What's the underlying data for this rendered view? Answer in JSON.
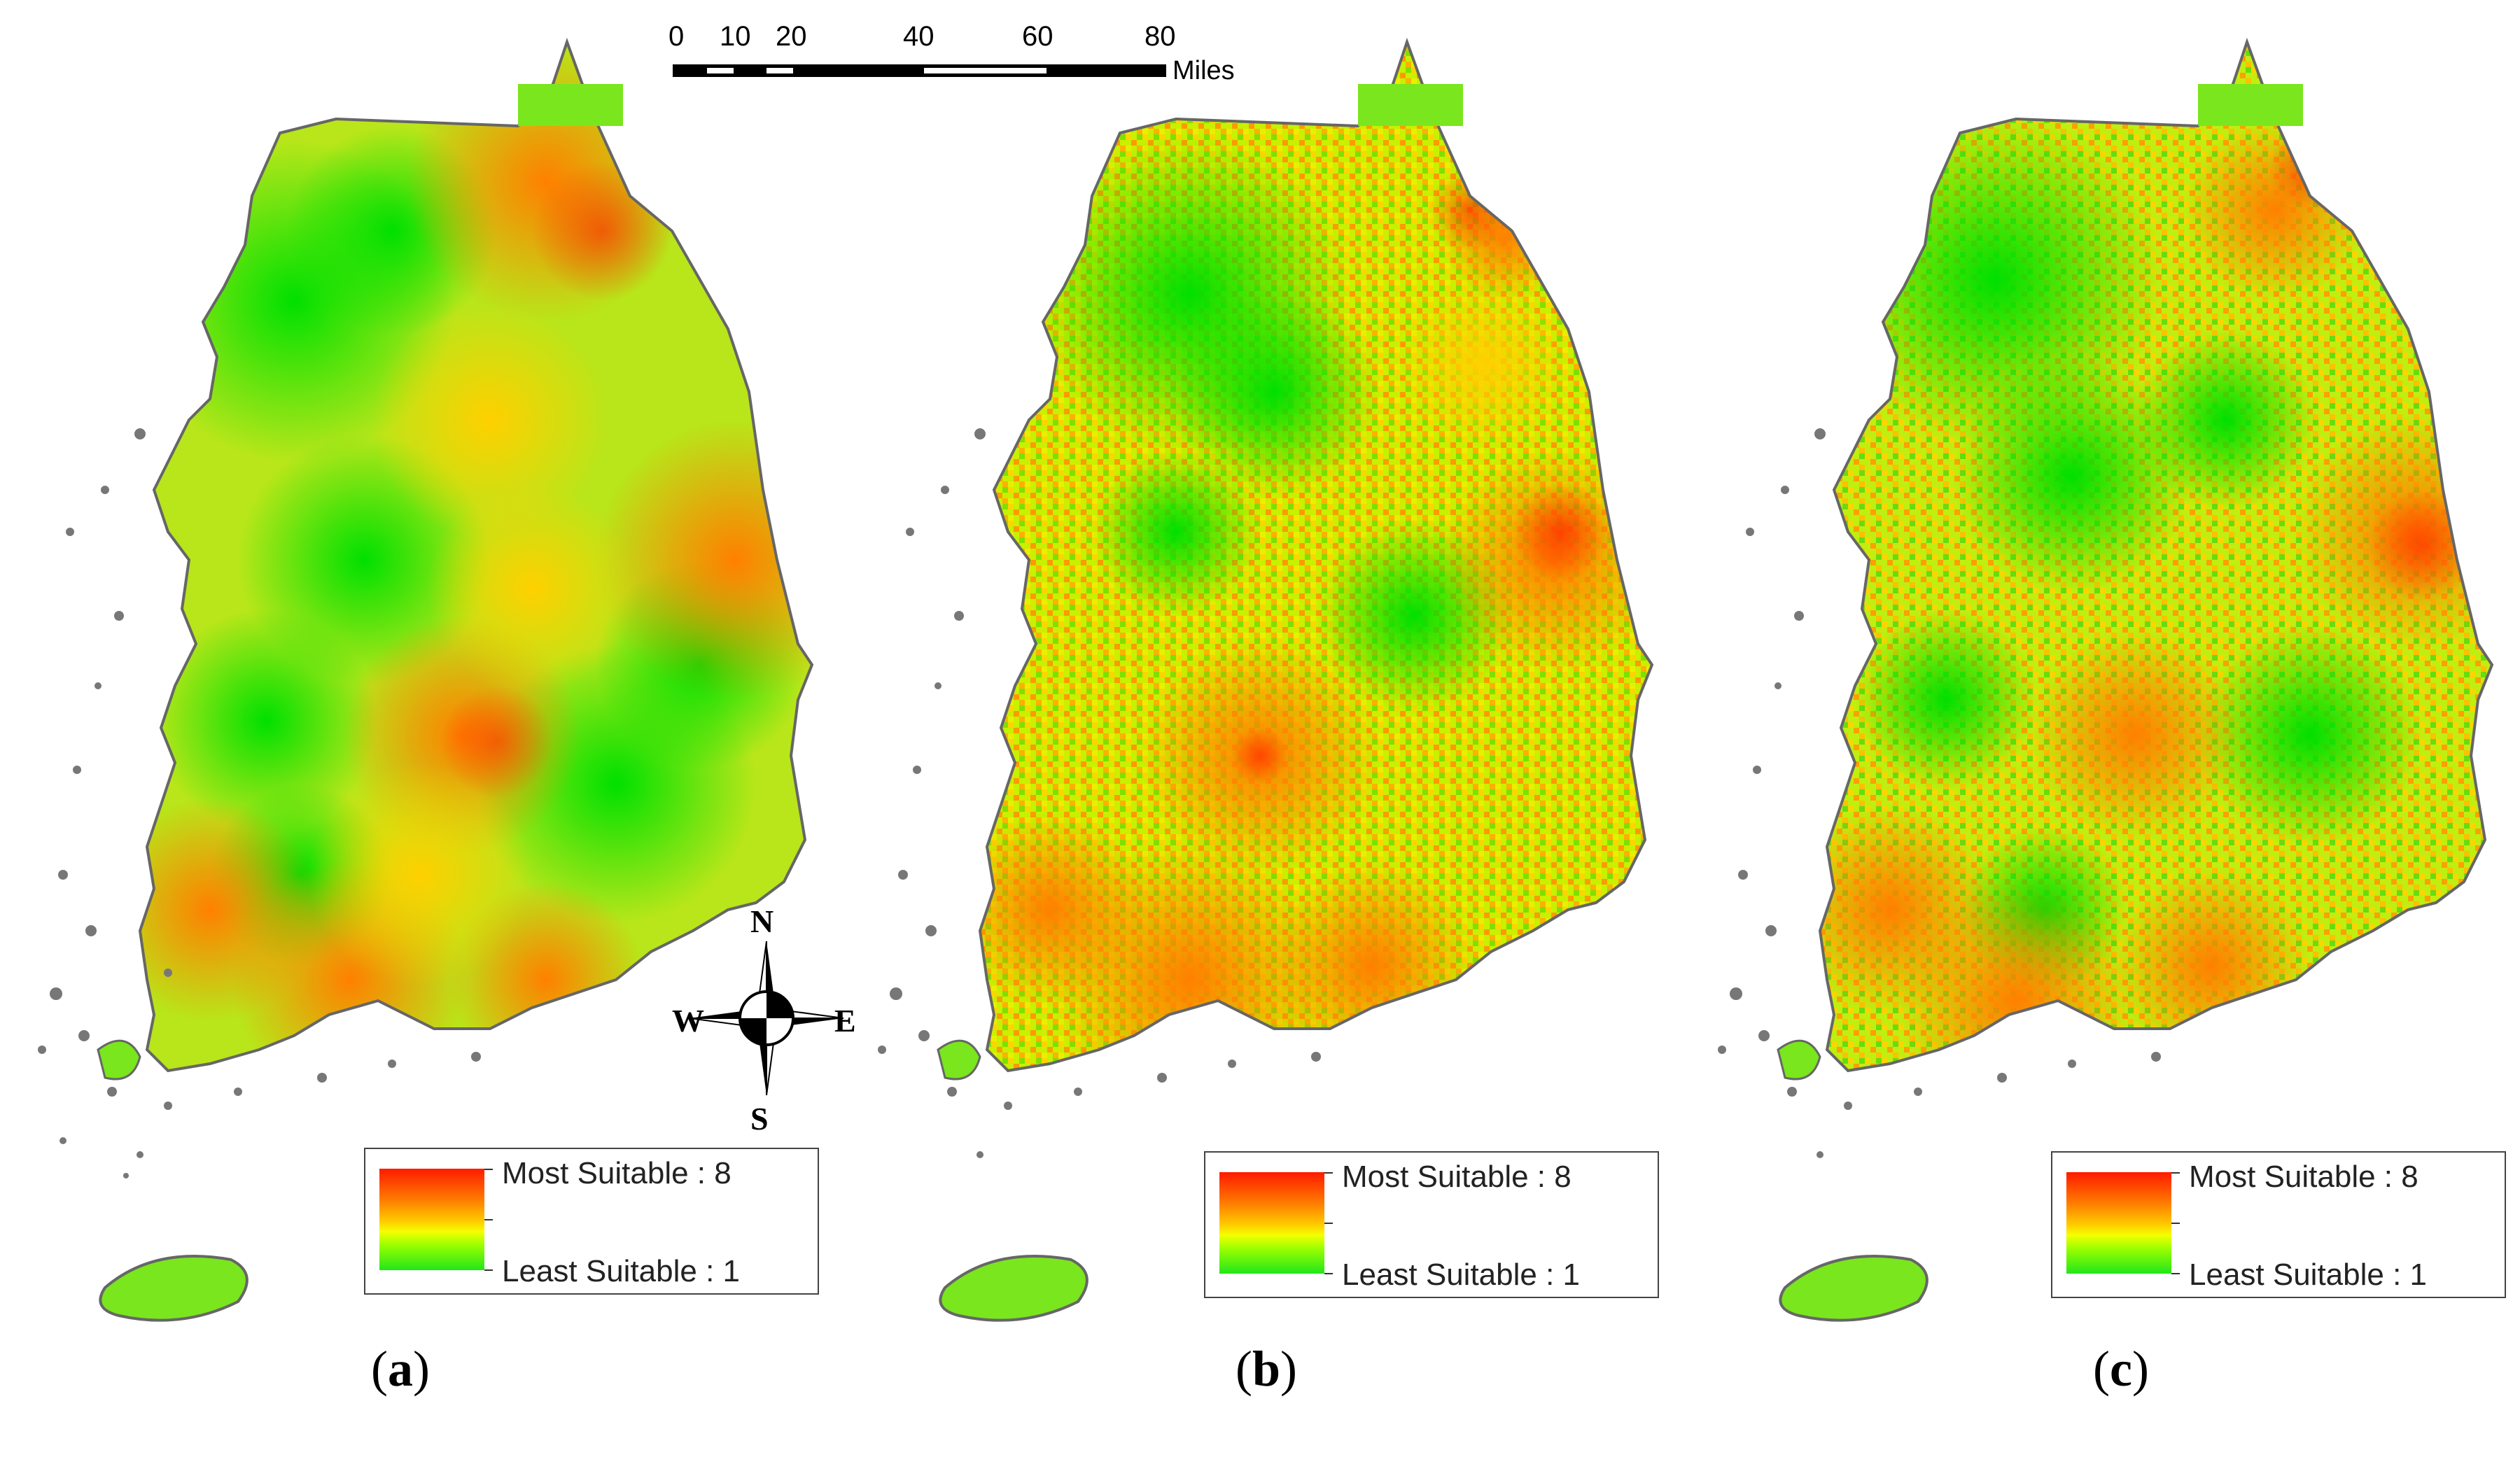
{
  "scale_bar": {
    "ticks": [
      "0",
      "10",
      "20",
      "40",
      "60",
      "80"
    ],
    "unit": "Miles"
  },
  "compass": {
    "n": "N",
    "s": "S",
    "e": "E",
    "w": "W"
  },
  "panels": [
    {
      "caption_open": "(",
      "caption_letter": "a",
      "caption_close": ")",
      "legend": {
        "most": "Most Suitable : 8",
        "least": "Least Suitable : 1"
      }
    },
    {
      "caption_open": "(",
      "caption_letter": "b",
      "caption_close": ")",
      "legend": {
        "most": "Most Suitable : 8",
        "least": "Least Suitable : 1"
      }
    },
    {
      "caption_open": "(",
      "caption_letter": "c",
      "caption_close": ")",
      "legend": {
        "most": "Most Suitable : 8",
        "least": "Least Suitable : 1"
      }
    }
  ],
  "colors": {
    "most_suitable": "#ff1a00",
    "high": "#ff7a00",
    "mid": "#ffcc00",
    "mid_low": "#f5ff00",
    "least_suitable": "#22e61a",
    "land_base": "#7ae61e",
    "outline": "#666666"
  }
}
